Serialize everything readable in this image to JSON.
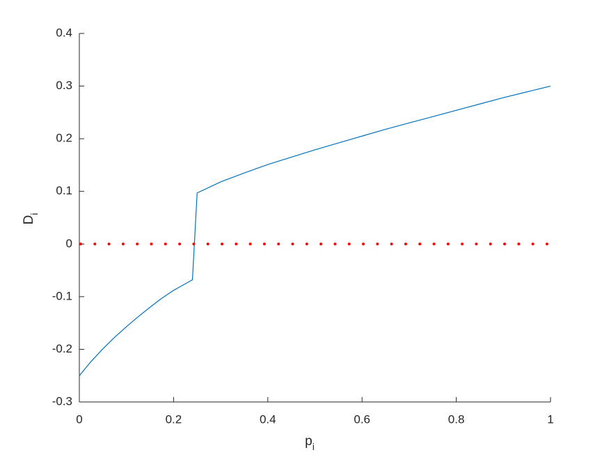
{
  "chart_data": {
    "type": "line",
    "xlabel": {
      "base": "p",
      "sub": "i"
    },
    "ylabel": {
      "base": "D",
      "sub": "i"
    },
    "series": [
      {
        "color": "#0072bd",
        "style": "solid",
        "x": [
          0,
          0.025,
          0.05,
          0.075,
          0.1,
          0.125,
          0.15,
          0.175,
          0.2,
          0.22,
          0.24,
          0.25,
          0.3,
          0.35,
          0.4,
          0.45,
          0.5,
          0.55,
          0.6,
          0.65,
          0.7,
          0.75,
          0.8,
          0.85,
          0.9,
          0.95,
          1
        ],
        "values": [
          -0.25,
          -0.223,
          -0.199,
          -0.177,
          -0.157,
          -0.138,
          -0.12,
          -0.103,
          -0.088,
          -0.078,
          -0.068,
          0.097,
          0.118,
          0.135,
          0.151,
          0.165,
          0.179,
          0.192,
          0.205,
          0.218,
          0.23,
          0.242,
          0.254,
          0.266,
          0.278,
          0.289,
          0.3
        ]
      },
      {
        "color": "#ff0000",
        "style": "dotted",
        "x": [
          0,
          1
        ],
        "values": [
          0,
          0
        ]
      }
    ],
    "xlim": [
      0,
      1
    ],
    "xticks": [
      0,
      0.2,
      0.4,
      0.6,
      0.8,
      1
    ],
    "ylim": [
      -0.3,
      0.4
    ],
    "yticks": [
      -0.3,
      -0.2,
      -0.1,
      0,
      0.1,
      0.2,
      0.3,
      0.4
    ],
    "grid": false
  }
}
